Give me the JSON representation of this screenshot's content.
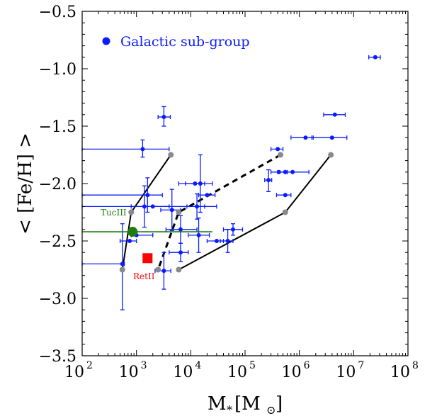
{
  "chart_data": {
    "type": "scatter",
    "xscale": "log",
    "xlim": [
      100,
      100000000
    ],
    "ylim": [
      -3.5,
      -0.5
    ],
    "xlabel": {
      "main": "M",
      "sub": "*",
      "bracket": "[M",
      "sun": "⊙",
      "close": "]"
    },
    "ylabel": "< [Fe/H] >",
    "x_tick_labels": [
      {
        "value": 100,
        "base": "10",
        "exp": "2"
      },
      {
        "value": 1000,
        "base": "10",
        "exp": "3"
      },
      {
        "value": 10000,
        "base": "10",
        "exp": "4"
      },
      {
        "value": 100000,
        "base": "10",
        "exp": "5"
      },
      {
        "value": 1000000,
        "base": "10",
        "exp": "6"
      },
      {
        "value": 10000000,
        "base": "10",
        "exp": "7"
      },
      {
        "value": 100000000,
        "base": "10",
        "exp": "8"
      }
    ],
    "y_tick_labels": [
      {
        "value": -0.5,
        "label": "−0.5"
      },
      {
        "value": -1.0,
        "label": "−1.0"
      },
      {
        "value": -1.5,
        "label": "−1.5"
      },
      {
        "value": -2.0,
        "label": "−2.0"
      },
      {
        "value": -2.5,
        "label": "−2.5"
      },
      {
        "value": -3.0,
        "label": "−3.0"
      },
      {
        "value": -3.5,
        "label": "−3.5"
      }
    ],
    "legend": {
      "label": "Galactic sub-group",
      "color": "#0a1cff",
      "position": "top-left"
    },
    "series_galactic": {
      "color": "#0a1cff",
      "points": [
        {
          "x": 25000000,
          "y": -0.9,
          "xerr_lo": 19000000,
          "xerr_hi": 31000000
        },
        {
          "x": 3200,
          "y": -1.42,
          "xerr_lo": 2500,
          "xerr_hi": 4200,
          "yerr_lo": -1.5,
          "yerr_hi": -1.33
        },
        {
          "x": 1300,
          "y": -1.7,
          "xerr_lo": 100,
          "xerr_hi": 4000,
          "yerr_lo": -1.77,
          "yerr_hi": -1.62
        },
        {
          "x": 4500000,
          "y": -1.4,
          "xerr_lo": 2800000,
          "xerr_hi": 7000000
        },
        {
          "x": 1300000,
          "y": -1.6,
          "xerr_lo": 700000,
          "xerr_hi": 1800000
        },
        {
          "x": 4000000,
          "y": -1.6,
          "xerr_lo": 1700000,
          "xerr_hi": 7500000
        },
        {
          "x": 400000,
          "y": -1.7,
          "xerr_lo": 300000,
          "xerr_hi": 500000
        },
        {
          "x": 420000,
          "y": -1.9,
          "xerr_lo": 300000,
          "xerr_hi": 600000
        },
        {
          "x": 550000,
          "y": -1.9,
          "xerr_lo": 400000,
          "xerr_hi": 750000
        },
        {
          "x": 750000,
          "y": -1.9,
          "xerr_lo": 550000,
          "xerr_hi": 1500000
        },
        {
          "x": 270000,
          "y": -1.97,
          "xerr_lo": 230000,
          "xerr_hi": 310000,
          "yerr_lo": -2.07,
          "yerr_hi": -1.88
        },
        {
          "x": 550000,
          "y": -2.1,
          "xerr_lo": 380000,
          "xerr_hi": 700000
        },
        {
          "x": 1600,
          "y": -2.1,
          "xerr_lo": 100,
          "xerr_hi": 3000,
          "yerr_lo": -2.25,
          "yerr_hi": -1.95
        },
        {
          "x": 15000,
          "y": -2.0,
          "xerr_lo": 8000,
          "xerr_hi": 25000,
          "yerr_lo": -2.25,
          "yerr_hi": -1.75
        },
        {
          "x": 12000,
          "y": -2.0,
          "xerr_lo": 6000,
          "xerr_hi": 18000
        },
        {
          "x": 20000,
          "y": -2.1,
          "xerr_lo": 14000,
          "xerr_hi": 28000
        },
        {
          "x": 1400,
          "y": -2.2,
          "xerr_lo": 800,
          "xerr_hi": 4000,
          "yerr_lo": -2.38,
          "yerr_hi": -2.02
        },
        {
          "x": 2000,
          "y": -2.2,
          "xerr_lo": 100,
          "xerr_hi": 30000
        },
        {
          "x": 4500,
          "y": -2.23,
          "xerr_lo": 2800,
          "xerr_hi": 6500,
          "yerr_lo": -2.41,
          "yerr_hi": -2.05
        },
        {
          "x": 13000,
          "y": -2.2,
          "xerr_lo": 8500,
          "xerr_hi": 18000,
          "yerr_lo": -2.31,
          "yerr_hi": -2.09
        },
        {
          "x": 6500,
          "y": -2.4,
          "xerr_lo": 3500,
          "xerr_hi": 13000,
          "yerr_lo": -2.52,
          "yerr_hi": -2.28
        },
        {
          "x": 1000,
          "y": -2.45,
          "xerr_lo": 800,
          "xerr_hi": 2000
        },
        {
          "x": 14000,
          "y": -2.45,
          "xerr_lo": 9000,
          "xerr_hi": 22000,
          "yerr_lo": -2.6,
          "yerr_hi": -2.3
        },
        {
          "x": 60000,
          "y": -2.4,
          "xerr_lo": 40000,
          "xerr_hi": 90000,
          "yerr_lo": -2.45,
          "yerr_hi": -2.35
        },
        {
          "x": 30000,
          "y": -2.5,
          "xerr_lo": 20000,
          "xerr_hi": 40000
        },
        {
          "x": 48000,
          "y": -2.5,
          "xerr_lo": 35000,
          "xerr_hi": 60000,
          "yerr_lo": -2.6,
          "yerr_hi": -2.4
        },
        {
          "x": 6500,
          "y": -2.6,
          "xerr_lo": 4000,
          "xerr_hi": 9000,
          "yerr_lo": -2.68,
          "yerr_hi": -2.52
        },
        {
          "x": 750,
          "y": -2.5,
          "xerr_lo": 500,
          "xerr_hi": 1000
        },
        {
          "x": 550,
          "y": -2.7,
          "xerr_lo": 100,
          "xerr_hi": 600,
          "yerr_lo": -3.1,
          "yerr_hi": -2.35
        },
        {
          "x": 3200,
          "y": -2.76,
          "xerr_lo": 2200,
          "xerr_hi": 4300,
          "yerr_lo": -2.92,
          "yerr_hi": -2.6
        }
      ]
    },
    "tucIII": {
      "label": "TucIII",
      "x": 850,
      "y": -2.42,
      "xerr_lo": 100,
      "xerr_hi": 25000,
      "color": "#1e7c10"
    },
    "retII": {
      "label": "RetII",
      "x": 1600,
      "y": -2.65,
      "color": "#ff0000"
    },
    "solid_lines": [
      [
        {
          "x": 4300,
          "y": -1.75
        },
        {
          "x": 800,
          "y": -2.25
        },
        {
          "x": 550,
          "y": -2.75
        }
      ],
      [
        {
          "x": 3800000,
          "y": -1.75
        },
        {
          "x": 550000,
          "y": -2.25
        },
        {
          "x": 6000,
          "y": -2.75
        }
      ]
    ],
    "dashed_line": [
      {
        "x": 450000,
        "y": -1.75
      },
      {
        "x": 6000,
        "y": -2.25
      },
      {
        "x": 2500,
        "y": -2.75
      }
    ],
    "grey_points": [
      {
        "x": 4300,
        "y": -1.75
      },
      {
        "x": 800,
        "y": -2.25
      },
      {
        "x": 550,
        "y": -2.75
      },
      {
        "x": 450000,
        "y": -1.75
      },
      {
        "x": 6000,
        "y": -2.25
      },
      {
        "x": 2500,
        "y": -2.75
      },
      {
        "x": 3800000,
        "y": -1.75
      },
      {
        "x": 550000,
        "y": -2.25
      },
      {
        "x": 6000,
        "y": -2.75
      }
    ]
  }
}
